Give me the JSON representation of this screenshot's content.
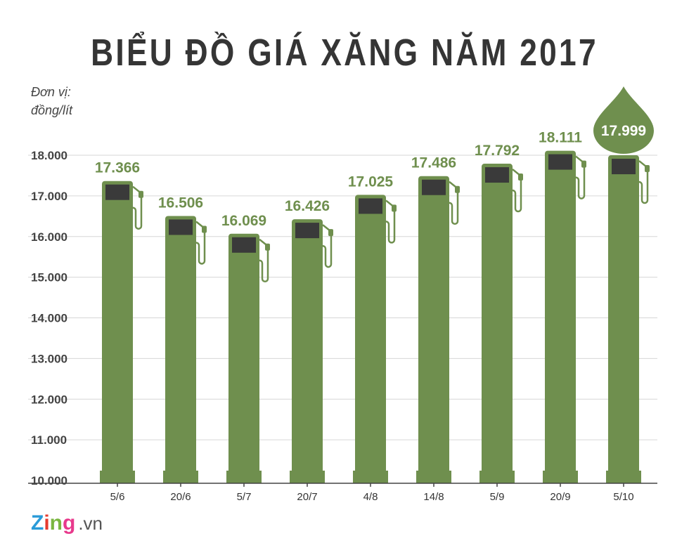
{
  "chart_data": {
    "type": "bar",
    "title": "BIỂU ĐỒ GIÁ XĂNG NĂM 2017",
    "unit_label": [
      "Đơn vị:",
      "đồng/lít"
    ],
    "categories": [
      "5/6",
      "20/6",
      "5/7",
      "20/7",
      "4/8",
      "14/8",
      "5/9",
      "20/9",
      "5/10"
    ],
    "values": [
      17366,
      16506,
      16069,
      16426,
      17025,
      17486,
      17792,
      18111,
      17999
    ],
    "value_labels": [
      "17.366",
      "16.506",
      "16.069",
      "16.426",
      "17.025",
      "17.486",
      "17.792",
      "18.111",
      "17.999"
    ],
    "ylim": [
      10000,
      18000
    ],
    "yticks": [
      10000,
      11000,
      12000,
      13000,
      14000,
      15000,
      16000,
      17000,
      18000
    ],
    "ytick_labels": [
      "10.000",
      "11.000",
      "12.000",
      "13.000",
      "14.000",
      "15.000",
      "16.000",
      "17.000",
      "18.000"
    ],
    "grid": true,
    "highlight_last": true,
    "colors": {
      "bar": "#6f8f4e",
      "screen": "#3a3a3a",
      "grid": "#d6d6d6",
      "axis": "#444444",
      "title": "#353535"
    }
  },
  "logo": {
    "z": "Z",
    "i": "i",
    "n": "n",
    "g": "g",
    "domain": ".vn"
  }
}
